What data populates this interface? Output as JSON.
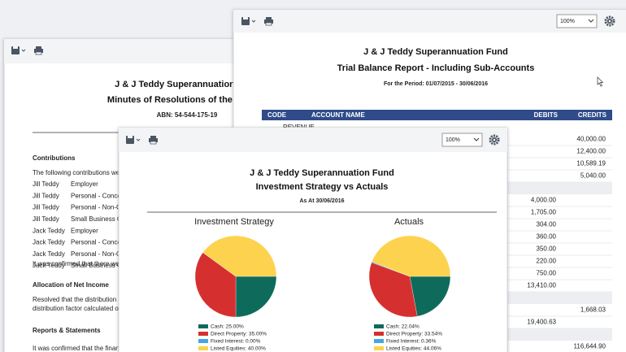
{
  "minutes": {
    "title": "J & J Teddy Superannuation Fund",
    "subtitle": "Minutes of Resolutions of the Trustee",
    "abn": "ABN: 54-544-175-19",
    "contributions_heading": "Contributions",
    "contributions_intro": "The following contributions were",
    "contributions": [
      [
        "Jill Teddy",
        "Employer"
      ],
      [
        "Jill Teddy",
        "Personal - Concessional"
      ],
      [
        "Jill Teddy",
        "Personal - Non-Concessional"
      ],
      [
        "Jill Teddy",
        "Small Business CGT"
      ],
      [
        "Jack Teddy",
        "Employer"
      ],
      [
        "Jack Teddy",
        "Personal - Concessional"
      ],
      [
        "Jack Teddy",
        "Personal - Non-Concessional"
      ],
      [
        "Jack Teddy",
        "Small Business CGT"
      ]
    ],
    "contributions_note": "It was confirmed that there were",
    "allocation_heading": "Allocation of Net Income",
    "allocation_text": [
      "Resolved that the distribution of",
      "distribution factor calculated on"
    ],
    "reports_heading": "Reports & Statements",
    "reports_text": "It was confirmed that the financial"
  },
  "trial_balance": {
    "zoom": "100%",
    "title": "J & J Teddy Superannuation Fund",
    "subtitle": "Trial Balance Report - Including Sub-Accounts",
    "period": "For the Period: 01/07/2015 - 30/06/2016",
    "columns": [
      "CODE",
      "ACCOUNT NAME",
      "DEBITS",
      "CREDITS"
    ],
    "section": "REVENUE",
    "rows": [
      {
        "credit": "40,000.00"
      },
      {
        "credit": "12,400.00"
      },
      {
        "credit": "10,589.19"
      },
      {
        "credit": "5,040.00"
      },
      {
        "debit": "4,000.00"
      },
      {
        "debit": "1,705.00"
      },
      {
        "debit": "304.00"
      },
      {
        "debit": "360.00"
      },
      {
        "debit": "350.00"
      },
      {
        "debit": "220.00"
      },
      {
        "debit": "750.00"
      },
      {
        "debit": "13,410.00"
      },
      {
        "credit": "1,668.03"
      },
      {
        "debit": "19,400.63"
      },
      {
        "credit": "116,644.90"
      }
    ]
  },
  "strategy_report": {
    "zoom": "100%",
    "title": "J & J Teddy Superannuation Fund",
    "subtitle": "Investment Strategy vs Actuals",
    "date": "As At 30/06/2016",
    "charts": [
      {
        "type": "pie",
        "title": "Investment Strategy",
        "labels": [
          "Cash: 25.00%",
          "Direct Property: 35.00%",
          "Fixed Interest: 0.00%",
          "Listed Equities: 40.00%"
        ],
        "values": [
          25,
          35,
          0,
          40
        ],
        "colors": [
          "#0e6b5c",
          "#d62f2f",
          "#45a7df",
          "#fdd24e"
        ]
      },
      {
        "type": "pie",
        "title": "Actuals",
        "labels": [
          "Cash: 22.04%",
          "Direct Property: 33.54%",
          "Fixed Interest: 0.36%",
          "Listed Equities: 44.06%"
        ],
        "values": [
          22.04,
          33.54,
          0.36,
          44.06
        ],
        "colors": [
          "#0e6b5c",
          "#d62f2f",
          "#45a7df",
          "#fdd24e"
        ]
      }
    ]
  }
}
